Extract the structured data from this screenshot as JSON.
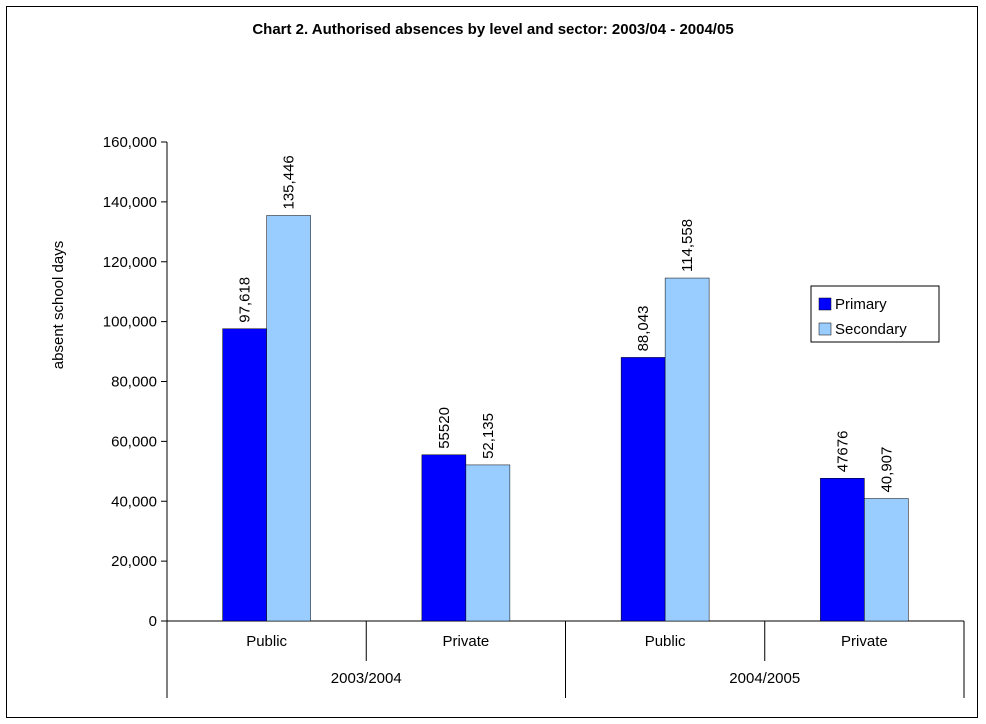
{
  "chart_data": {
    "type": "bar",
    "title": "Chart 2. Authorised absences by level and sector: 2003/04 - 2004/05",
    "ylabel": "absent school days",
    "xlabel": "",
    "ylim": [
      0,
      160000
    ],
    "yticks": [
      0,
      20000,
      40000,
      60000,
      80000,
      100000,
      120000,
      140000,
      160000
    ],
    "ytick_labels": [
      "0",
      "20,000",
      "40,000",
      "60,000",
      "80,000",
      "100,000",
      "120,000",
      "140,000",
      "160,000"
    ],
    "categories": [
      "Public",
      "Private",
      "Public",
      "Private"
    ],
    "groups": [
      {
        "label": "2003/2004",
        "span": [
          0,
          1
        ]
      },
      {
        "label": "2004/2005",
        "span": [
          2,
          3
        ]
      }
    ],
    "series": [
      {
        "name": "Primary",
        "color": "#0000ff",
        "values": [
          97618,
          55520,
          88043,
          47676
        ],
        "labels": [
          "97,618",
          "55520",
          "88,043",
          "47676"
        ]
      },
      {
        "name": "Secondary",
        "color": "#99ccff",
        "values": [
          135446,
          52135,
          114558,
          40907
        ],
        "labels": [
          "135,446",
          "52,135",
          "114,558",
          "40,907"
        ]
      }
    ],
    "legend": "right",
    "grid": false
  }
}
